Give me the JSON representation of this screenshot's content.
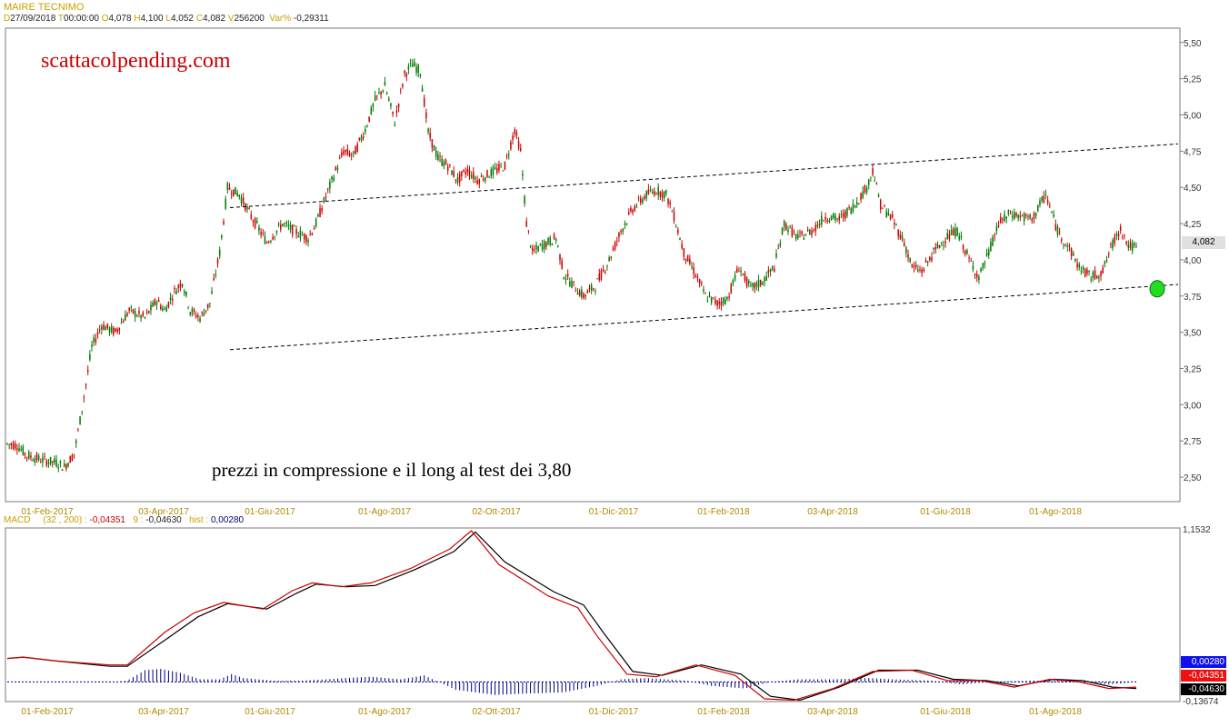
{
  "instrument": "MAIRE TECNIMO",
  "ohlc": {
    "d_key": "D",
    "date": "27/09/2018",
    "t_key": "T",
    "time": "00:00:00",
    "o_key": "O",
    "open": "4,078",
    "h_key": "H",
    "high": "4,100",
    "l_key": "L",
    "low": "4,052",
    "c_key": "C",
    "close": "4,082",
    "v_key": "V",
    "volume": "256200",
    "var_key": "Var%",
    "var": "-0,29311"
  },
  "watermark": "scattacolpending.com",
  "annotation": "prezzi in compressione e il long al test dei 3,80",
  "last_price_label": "4,082",
  "macd_header": {
    "name": "MACD",
    "params": "(32 , 200) :",
    "macd": "-0,04351",
    "sig_key": "9 :",
    "signal": "-0,04630",
    "hist_key": "hist :",
    "hist": "0,00280"
  },
  "colors": {
    "up": "#007a00",
    "down": "#cc0000",
    "macd": "#cc0000",
    "signal": "#000000",
    "hist": "#000080",
    "marker": "#22dd22"
  },
  "chart_data": [
    {
      "type": "candlestick",
      "title": "MAIRE TECNIMO",
      "x_tick_labels": [
        "01-Feb-2017",
        "03-Apr-2017",
        "01-Giu-2017",
        "01-Ago-2017",
        "02-Ott-2017",
        "01-Dic-2017",
        "01-Feb-2018",
        "03-Apr-2018",
        "01-Giu-2018",
        "01-Ago-2018"
      ],
      "y_ticks": [
        "5,50",
        "5,25",
        "5,00",
        "4,75",
        "4,50",
        "4,25",
        "4,00",
        "3,75",
        "3,50",
        "3,25",
        "3,00",
        "2,75",
        "2,50"
      ],
      "y_tick_values": [
        5.5,
        5.25,
        5.0,
        4.75,
        4.5,
        4.25,
        4.0,
        3.75,
        3.5,
        3.25,
        3.0,
        2.75,
        2.5
      ],
      "ylim": [
        2.35,
        5.58
      ],
      "grid": false,
      "price_path": [
        [
          0,
          2.73
        ],
        [
          5,
          2.72
        ],
        [
          10,
          2.65
        ],
        [
          17,
          2.62
        ],
        [
          25,
          2.6
        ],
        [
          29,
          2.57
        ],
        [
          34,
          2.66
        ],
        [
          38,
          2.97
        ],
        [
          43,
          3.4
        ],
        [
          48,
          3.55
        ],
        [
          55,
          3.5
        ],
        [
          62,
          3.65
        ],
        [
          70,
          3.6
        ],
        [
          76,
          3.72
        ],
        [
          80,
          3.65
        ],
        [
          85,
          3.78
        ],
        [
          89,
          3.85
        ],
        [
          93,
          3.65
        ],
        [
          98,
          3.6
        ],
        [
          103,
          3.7
        ],
        [
          108,
          4.05
        ],
        [
          112,
          4.5
        ],
        [
          118,
          4.45
        ],
        [
          124,
          4.3
        ],
        [
          132,
          4.12
        ],
        [
          140,
          4.25
        ],
        [
          146,
          4.2
        ],
        [
          153,
          4.15
        ],
        [
          157,
          4.25
        ],
        [
          161,
          4.4
        ],
        [
          166,
          4.58
        ],
        [
          171,
          4.75
        ],
        [
          176,
          4.72
        ],
        [
          182,
          4.9
        ],
        [
          187,
          5.1
        ],
        [
          192,
          5.2
        ],
        [
          197,
          4.95
        ],
        [
          202,
          5.28
        ],
        [
          206,
          5.35
        ],
        [
          210,
          5.3
        ],
        [
          214,
          4.88
        ],
        [
          219,
          4.7
        ],
        [
          224,
          4.65
        ],
        [
          229,
          4.55
        ],
        [
          234,
          4.62
        ],
        [
          239,
          4.55
        ],
        [
          246,
          4.6
        ],
        [
          253,
          4.65
        ],
        [
          258,
          4.9
        ],
        [
          261,
          4.75
        ],
        [
          264,
          4.25
        ],
        [
          267,
          4.05
        ],
        [
          272,
          4.1
        ],
        [
          279,
          4.15
        ],
        [
          283,
          3.9
        ],
        [
          288,
          3.82
        ],
        [
          293,
          3.75
        ],
        [
          299,
          3.82
        ],
        [
          306,
          4.0
        ],
        [
          312,
          4.2
        ],
        [
          318,
          4.35
        ],
        [
          325,
          4.45
        ],
        [
          330,
          4.48
        ],
        [
          335,
          4.45
        ],
        [
          339,
          4.3
        ],
        [
          344,
          4.05
        ],
        [
          350,
          3.9
        ],
        [
          355,
          3.75
        ],
        [
          361,
          3.7
        ],
        [
          366,
          3.73
        ],
        [
          372,
          3.95
        ],
        [
          378,
          3.8
        ],
        [
          384,
          3.85
        ],
        [
          390,
          3.95
        ],
        [
          395,
          4.25
        ],
        [
          402,
          4.15
        ],
        [
          409,
          4.2
        ],
        [
          416,
          4.3
        ],
        [
          423,
          4.28
        ],
        [
          431,
          4.38
        ],
        [
          437,
          4.5
        ],
        [
          440,
          4.62
        ],
        [
          444,
          4.38
        ],
        [
          450,
          4.28
        ],
        [
          456,
          4.12
        ],
        [
          460,
          3.95
        ],
        [
          465,
          3.92
        ],
        [
          471,
          4.05
        ],
        [
          477,
          4.15
        ],
        [
          483,
          4.2
        ],
        [
          489,
          4.0
        ],
        [
          494,
          3.88
        ],
        [
          499,
          4.05
        ],
        [
          504,
          4.25
        ],
        [
          510,
          4.32
        ],
        [
          515,
          4.3
        ],
        [
          521,
          4.28
        ],
        [
          528,
          4.45
        ],
        [
          534,
          4.2
        ],
        [
          539,
          4.1
        ],
        [
          545,
          3.95
        ],
        [
          551,
          3.88
        ],
        [
          557,
          3.92
        ],
        [
          561,
          4.08
        ],
        [
          566,
          4.22
        ],
        [
          570,
          4.1
        ],
        [
          574,
          4.08
        ]
      ],
      "bar_count": 575,
      "channel_upper": {
        "from": [
          "01-Giu-2017",
          4.36
        ],
        "to": [
          "Set-2018",
          4.8
        ]
      },
      "channel_lower": {
        "from": [
          "01-Giu-2017",
          3.38
        ],
        "to": [
          "Set-2018",
          3.83
        ]
      },
      "marker": {
        "position": "Set-2018",
        "value": 3.8
      }
    },
    {
      "type": "line",
      "title": "MACD",
      "params": "(32 , 200)",
      "x_tick_labels": [
        "01-Feb-2017",
        "03-Apr-2017",
        "01-Giu-2017",
        "01-Ago-2017",
        "02-Ott-2017",
        "01-Dic-2017",
        "01-Feb-2018",
        "03-Apr-2018",
        "01-Giu-2018",
        "01-Ago-2018"
      ],
      "y_tick_labels": [
        "1,1532",
        "-0,13674"
      ],
      "ylim": [
        -0.13674,
        1.1532
      ],
      "value_labels": [
        "0,00280",
        "-0,04351",
        "-0,04630"
      ],
      "series": [
        {
          "name": "MACD",
          "values": [
            [
              0,
              0.18
            ],
            [
              8,
              0.19
            ],
            [
              25,
              0.16
            ],
            [
              52,
              0.13
            ],
            [
              61,
              0.13
            ],
            [
              80,
              0.38
            ],
            [
              95,
              0.53
            ],
            [
              110,
              0.61
            ],
            [
              130,
              0.56
            ],
            [
              145,
              0.7
            ],
            [
              155,
              0.76
            ],
            [
              170,
              0.73
            ],
            [
              185,
              0.76
            ],
            [
              205,
              0.87
            ],
            [
              225,
              1.02
            ],
            [
              236,
              1.16
            ],
            [
              250,
              0.9
            ],
            [
              275,
              0.66
            ],
            [
              290,
              0.57
            ],
            [
              300,
              0.35
            ],
            [
              315,
              0.06
            ],
            [
              330,
              0.04
            ],
            [
              350,
              0.13
            ],
            [
              370,
              0.05
            ],
            [
              385,
              -0.13
            ],
            [
              400,
              -0.14
            ],
            [
              420,
              -0.05
            ],
            [
              440,
              0.08
            ],
            [
              460,
              0.09
            ],
            [
              478,
              0.01
            ],
            [
              495,
              0.01
            ],
            [
              512,
              -0.04
            ],
            [
              530,
              0.02
            ],
            [
              545,
              0.0
            ],
            [
              560,
              -0.05
            ],
            [
              574,
              -0.04
            ]
          ]
        },
        {
          "name": "9",
          "values": [
            [
              0,
              0.18
            ],
            [
              8,
              0.19
            ],
            [
              25,
              0.16
            ],
            [
              52,
              0.12
            ],
            [
              61,
              0.12
            ],
            [
              82,
              0.34
            ],
            [
              97,
              0.5
            ],
            [
              112,
              0.6
            ],
            [
              132,
              0.56
            ],
            [
              147,
              0.68
            ],
            [
              157,
              0.75
            ],
            [
              172,
              0.73
            ],
            [
              187,
              0.74
            ],
            [
              207,
              0.86
            ],
            [
              227,
              1.0
            ],
            [
              238,
              1.15
            ],
            [
              253,
              0.92
            ],
            [
              278,
              0.69
            ],
            [
              293,
              0.59
            ],
            [
              303,
              0.38
            ],
            [
              318,
              0.08
            ],
            [
              333,
              0.05
            ],
            [
              353,
              0.13
            ],
            [
              373,
              0.06
            ],
            [
              388,
              -0.11
            ],
            [
              403,
              -0.14
            ],
            [
              423,
              -0.04
            ],
            [
              443,
              0.09
            ],
            [
              463,
              0.09
            ],
            [
              481,
              0.02
            ],
            [
              498,
              0.01
            ],
            [
              514,
              -0.03
            ],
            [
              532,
              0.02
            ],
            [
              547,
              0.01
            ],
            [
              562,
              -0.04
            ],
            [
              574,
              -0.05
            ]
          ]
        }
      ],
      "hist_path": [
        [
          0,
          0
        ],
        [
          55,
          0
        ],
        [
          61,
          0.01
        ],
        [
          70,
          0.09
        ],
        [
          78,
          0.1
        ],
        [
          88,
          0.07
        ],
        [
          98,
          0.02
        ],
        [
          108,
          0.02
        ],
        [
          114,
          0.06
        ],
        [
          120,
          0.03
        ],
        [
          135,
          0.01
        ],
        [
          150,
          0.01
        ],
        [
          162,
          0.02
        ],
        [
          172,
          0.03
        ],
        [
          185,
          0.04
        ],
        [
          200,
          0.02
        ],
        [
          212,
          0.05
        ],
        [
          228,
          -0.06
        ],
        [
          248,
          -0.1
        ],
        [
          263,
          -0.09
        ],
        [
          283,
          -0.08
        ],
        [
          300,
          -0.03
        ],
        [
          312,
          0.02
        ],
        [
          325,
          0.03
        ],
        [
          345,
          0.01
        ],
        [
          358,
          -0.03
        ],
        [
          375,
          -0.05
        ],
        [
          388,
          0.0
        ],
        [
          402,
          0.02
        ],
        [
          420,
          0.02
        ],
        [
          438,
          0.03
        ],
        [
          450,
          0.02
        ],
        [
          470,
          0.01
        ],
        [
          485,
          -0.02
        ],
        [
          498,
          0.0
        ],
        [
          520,
          0.01
        ],
        [
          535,
          0.01
        ],
        [
          548,
          0.0
        ],
        [
          560,
          -0.02
        ],
        [
          574,
          0.0
        ]
      ]
    }
  ]
}
